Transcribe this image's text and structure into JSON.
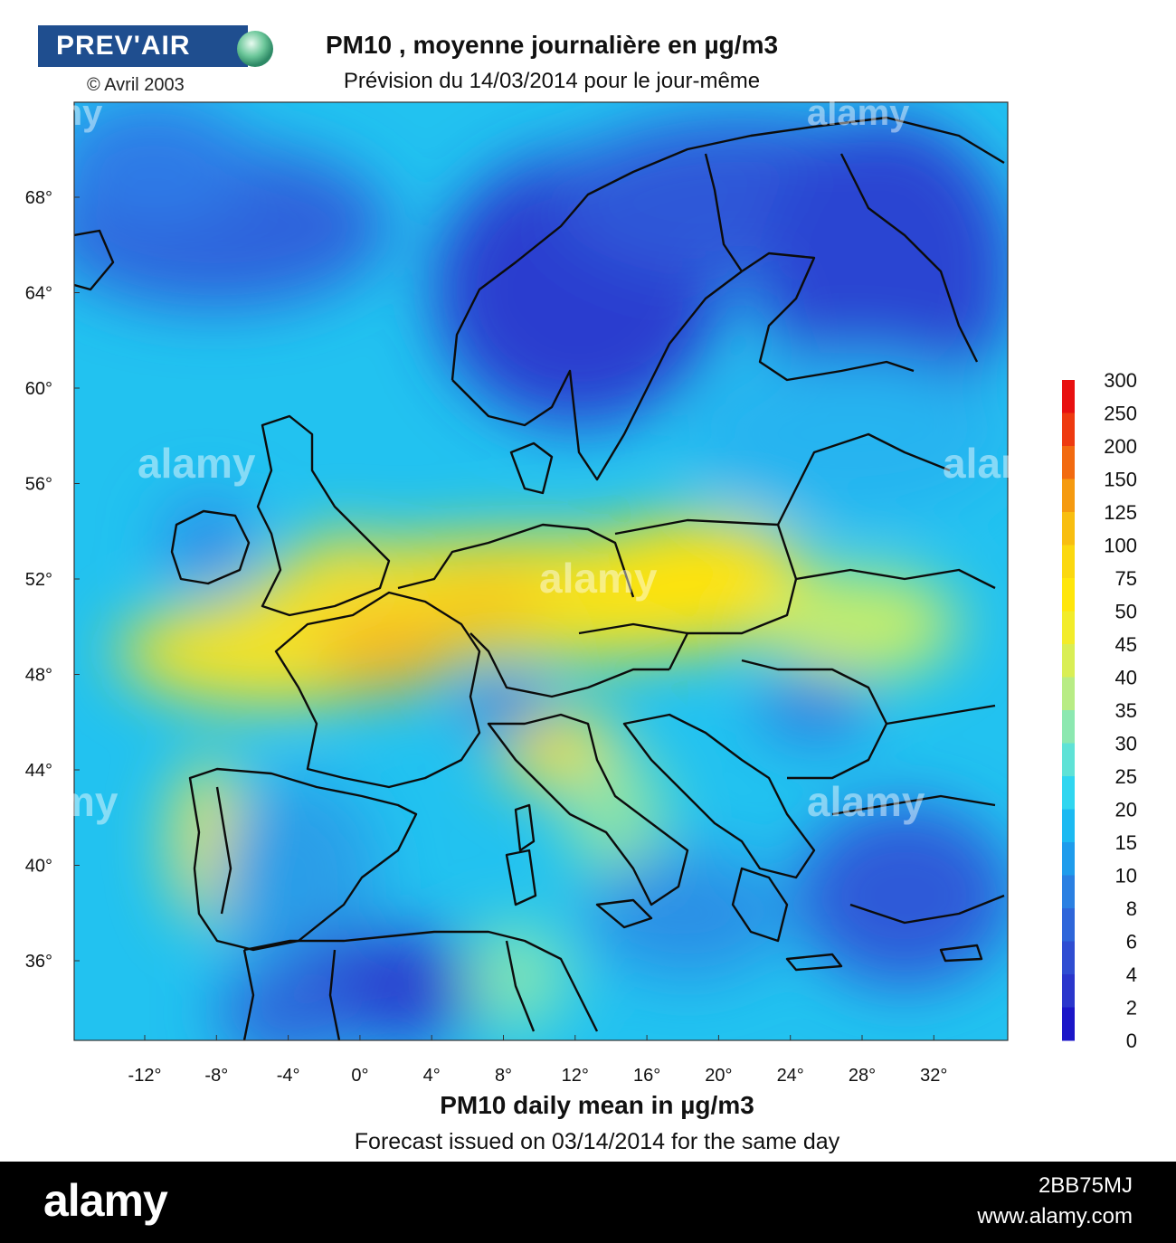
{
  "logo": {
    "text": "PREV'AIR",
    "copyright": "© Avril 2003"
  },
  "title": "PM10 , moyenne journalière en µg/m3",
  "subtitle": "Prévision du 14/03/2014 pour le jour-même",
  "footer_title": "PM10 daily mean in µg/m3",
  "footer_subtitle": "Forecast issued on 03/14/2014 for the same day",
  "lat_ticks": [
    "68°",
    "64°",
    "60°",
    "56°",
    "52°",
    "48°",
    "44°",
    "40°",
    "36°"
  ],
  "lon_ticks": [
    "-12°",
    "-8°",
    "-4°",
    "0°",
    "4°",
    "8°",
    "12°",
    "16°",
    "20°",
    "24°",
    "28°",
    "32°"
  ],
  "color_scale": {
    "labels": [
      "300",
      "250",
      "200",
      "150",
      "125",
      "100",
      "75",
      "50",
      "45",
      "40",
      "35",
      "30",
      "25",
      "20",
      "15",
      "10",
      "8",
      "6",
      "4",
      "2",
      "0"
    ],
    "colors": [
      "#e81010",
      "#ee3a10",
      "#f26a10",
      "#f59a10",
      "#f8be10",
      "#fbd80f",
      "#ffe60a",
      "#f2ec2a",
      "#d9ee55",
      "#b8ec85",
      "#8ce8b0",
      "#5fe2d6",
      "#30d6f0",
      "#1cbaf2",
      "#1f9cec",
      "#2a80e2",
      "#2e66da",
      "#2f4dd2",
      "#2a36cc",
      "#1b16c8"
    ]
  },
  "watermark": "alamy",
  "stock_bar": {
    "brand": "alamy",
    "image_id": "2BB75MJ",
    "site": "www.alamy.com"
  }
}
